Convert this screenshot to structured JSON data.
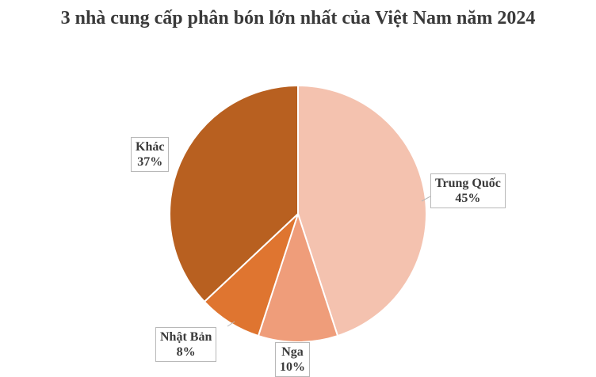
{
  "chart_data": {
    "type": "pie",
    "title": "3 nhà cung cấp phân bón lớn nhất của Việt Nam năm 2024",
    "slices": [
      {
        "label": "Trung Quốc",
        "value": 45,
        "value_label": "45%",
        "color": "#F4C2AF"
      },
      {
        "label": "Nga",
        "value": 10,
        "value_label": "10%",
        "color": "#EF9D7A"
      },
      {
        "label": "Nhật Bản",
        "value": 8,
        "value_label": "8%",
        "color": "#DF7530"
      },
      {
        "label": "Khác",
        "value": 37,
        "value_label": "37%",
        "color": "#B86020"
      }
    ]
  }
}
